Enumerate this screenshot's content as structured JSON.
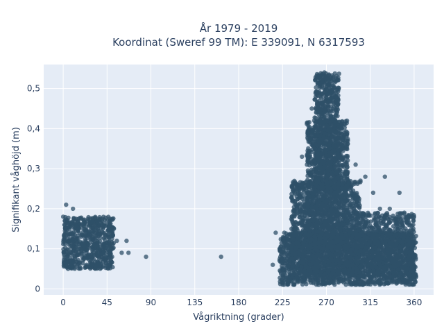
{
  "chart_data": {
    "type": "scatter",
    "title": "År 1979 - 2019",
    "subtitle": "Koordinat (Sweref 99 TM): E 339091, N 6317593",
    "xlabel": "Vågriktning (grader)",
    "ylabel": "Signifikant våghöjd (m)",
    "xlim": [
      -20,
      380
    ],
    "ylim": [
      -0.015,
      0.56
    ],
    "xticks": [
      0,
      45,
      90,
      135,
      180,
      225,
      270,
      315,
      360
    ],
    "xtick_labels": [
      "0",
      "45",
      "90",
      "135",
      "180",
      "225",
      "270",
      "315",
      "360"
    ],
    "yticks": [
      0,
      0.1,
      0.2,
      0.3,
      0.4,
      0.5
    ],
    "ytick_labels": [
      "0",
      "0,1",
      "0,2",
      "0,3",
      "0,4",
      "0,5"
    ],
    "grid": true,
    "colors": {
      "marker": "#2f5068",
      "plot_background": "#e5ecf6",
      "grid": "#ffffff",
      "text": "#2a3f5f"
    },
    "series": [
      {
        "values_xy": [
          [
            0,
            0.18
          ],
          [
            3,
            0.21
          ],
          [
            5,
            0.05
          ],
          [
            10,
            0.2
          ],
          [
            20,
            0.16
          ],
          [
            30,
            0.06
          ],
          [
            40,
            0.16
          ],
          [
            48,
            0.06
          ],
          [
            52,
            0.15
          ],
          [
            55,
            0.12
          ],
          [
            60,
            0.09
          ],
          [
            65,
            0.12
          ],
          [
            67,
            0.09
          ],
          [
            85,
            0.08
          ],
          [
            162,
            0.08
          ],
          [
            215,
            0.06
          ],
          [
            218,
            0.14
          ],
          [
            222,
            0.1
          ],
          [
            230,
            0.02
          ],
          [
            240,
            0.26
          ],
          [
            245,
            0.33
          ],
          [
            252,
            0.4
          ],
          [
            255,
            0.45
          ],
          [
            262,
            0.53
          ],
          [
            268,
            0.54
          ],
          [
            275,
            0.52
          ],
          [
            282,
            0.47
          ],
          [
            285,
            0.41
          ],
          [
            292,
            0.37
          ],
          [
            300,
            0.31
          ],
          [
            305,
            0.27
          ],
          [
            310,
            0.28
          ],
          [
            318,
            0.24
          ],
          [
            325,
            0.2
          ],
          [
            330,
            0.28
          ],
          [
            335,
            0.2
          ],
          [
            345,
            0.24
          ],
          [
            350,
            0.19
          ],
          [
            360,
            0.18
          ],
          [
            360,
            0.03
          ],
          [
            345,
            0.03
          ],
          [
            300,
            0.01
          ],
          [
            262,
            0.01
          ],
          [
            245,
            0.02
          ]
        ],
        "clusters": [
          {
            "x": [
              0,
              52
            ],
            "y": [
              0.05,
              0.18
            ],
            "n": 650
          },
          {
            "x": [
              222,
              362
            ],
            "y": [
              0.01,
              0.14
            ],
            "n": 1800
          },
          {
            "x": [
              234,
              305
            ],
            "y": [
              0.03,
              0.27
            ],
            "n": 1400
          },
          {
            "x": [
              250,
              292
            ],
            "y": [
              0.1,
              0.42
            ],
            "n": 1000
          },
          {
            "x": [
              258,
              283
            ],
            "y": [
              0.25,
              0.54
            ],
            "n": 700
          },
          {
            "x": [
              300,
              360
            ],
            "y": [
              0.03,
              0.19
            ],
            "n": 700
          }
        ]
      }
    ]
  }
}
